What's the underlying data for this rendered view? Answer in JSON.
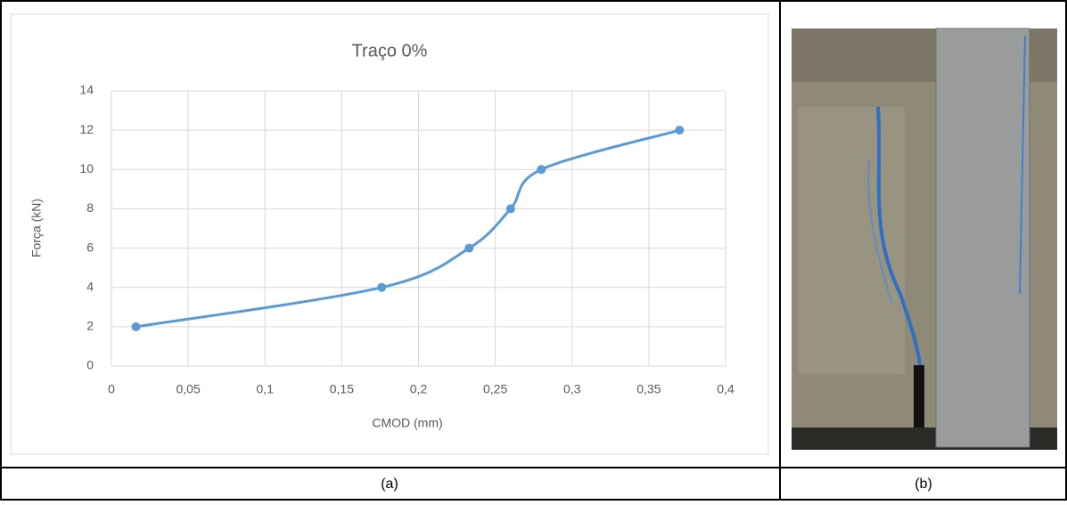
{
  "chart_data": {
    "type": "line",
    "title": "Traço 0%",
    "x_label": "CMOD (mm)",
    "y_label": "Força (kN)",
    "x": [
      0.016,
      0.176,
      0.233,
      0.26,
      0.28,
      0.37
    ],
    "series": [
      {
        "color": "#5b9bd5",
        "values": [
          2,
          4,
          6,
          8,
          10,
          12
        ]
      }
    ],
    "xlim": [
      0,
      0.4
    ],
    "xticks": [
      0,
      {
        "value": 0.05,
        "label": "0,05"
      },
      {
        "value": 0.1,
        "label": "0,1"
      },
      {
        "value": 0.15,
        "label": "0,15"
      },
      {
        "value": 0.2,
        "label": "0,2"
      },
      {
        "value": 0.25,
        "label": "0,25"
      },
      {
        "value": 0.3,
        "label": "0,3"
      },
      {
        "value": 0.35,
        "label": "0,35"
      },
      {
        "value": 0.4,
        "label": "0,4"
      }
    ],
    "ylim": [
      0,
      14
    ],
    "yticks": [
      0,
      2,
      4,
      6,
      8,
      10,
      12,
      14
    ],
    "grid": true
  },
  "captions": [
    "(a)",
    "(b)"
  ]
}
